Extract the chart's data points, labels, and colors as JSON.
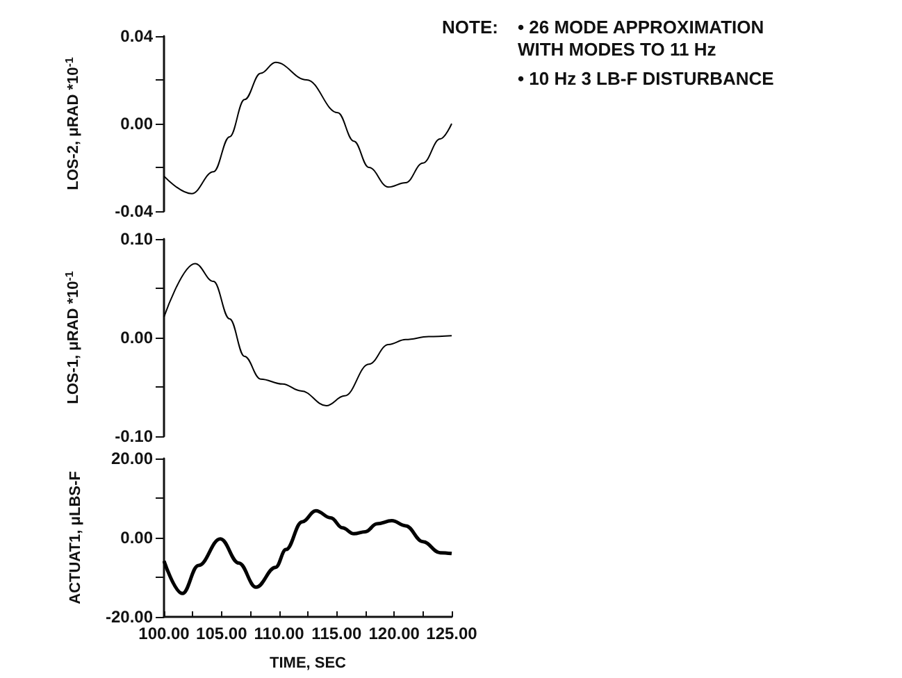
{
  "chart_data": [
    {
      "type": "line",
      "ylabel": "LOS-2, μRAD *10$^{-1}$",
      "annotations": [
        "NOTE:",
        "• 26 MODE APPROXIMATION WITH MODES TO 11 Hz",
        "• 10 Hz 3 LB-F DISTURBANCE"
      ],
      "xlim": [
        100,
        125
      ],
      "ylim": [
        -0.04,
        0.04
      ],
      "yticks": [
        {
          "value": -0.04,
          "label": "-0.04"
        },
        {
          "value": -0.02,
          "label": null
        },
        {
          "value": 0,
          "label": "0.00"
        },
        {
          "value": 0.02,
          "label": null
        },
        {
          "value": 0.04,
          "label": "0.04"
        }
      ],
      "tick_labels": "y",
      "marker": "none",
      "series": [
        {
          "color": "#000000",
          "x": [
            100,
            102.4,
            104.3,
            105.7,
            107,
            108.4,
            109.7,
            112.4,
            115.1,
            116.5,
            117.8,
            119.5,
            121,
            122.5,
            124,
            125
          ],
          "values": [
            -0.024,
            -0.032,
            -0.022,
            -0.006,
            0.011,
            0.023,
            0.028,
            0.02,
            0.005,
            -0.008,
            -0.02,
            -0.029,
            -0.027,
            -0.018,
            -0.007,
            0
          ]
        }
      ]
    },
    {
      "type": "line",
      "ylabel": "LOS-1, μRAD *10$^{-1}$",
      "xlim": [
        100,
        125
      ],
      "ylim": [
        -0.1,
        0.1
      ],
      "yticks": [
        {
          "value": -0.1,
          "label": "-0.10"
        },
        {
          "value": -0.05,
          "label": null
        },
        {
          "value": 0,
          "label": "0.00"
        },
        {
          "value": 0.05,
          "label": null
        },
        {
          "value": 0.1,
          "label": "0.10"
        }
      ],
      "tick_labels": "y",
      "marker": "none",
      "series": [
        {
          "color": "#000000",
          "x": [
            100,
            102.7,
            104.3,
            105.7,
            107,
            108.4,
            110.3,
            111.9,
            114.1,
            115.7,
            117.8,
            119.5,
            121,
            123,
            125
          ],
          "values": [
            0.021,
            0.075,
            0.057,
            0.019,
            -0.019,
            -0.042,
            -0.047,
            -0.054,
            -0.069,
            -0.059,
            -0.027,
            -0.007,
            -0.002,
            0.001,
            0.002
          ]
        }
      ]
    },
    {
      "type": "line",
      "ylabel": "ACTUAT1, μLBS-F",
      "xlabel": "TIME, SEC",
      "xlim": [
        100,
        125
      ],
      "xticks": [
        {
          "value": 100,
          "label": "100.00"
        },
        {
          "value": 102.5,
          "label": null
        },
        {
          "value": 105,
          "label": "105.00"
        },
        {
          "value": 107.5,
          "label": null
        },
        {
          "value": 110,
          "label": "110.00"
        },
        {
          "value": 112.5,
          "label": null
        },
        {
          "value": 115,
          "label": "115.00"
        },
        {
          "value": 117.5,
          "label": null
        },
        {
          "value": 120,
          "label": "120.00"
        },
        {
          "value": 122.5,
          "label": null
        },
        {
          "value": 125,
          "label": "125.00"
        }
      ],
      "ylim": [
        -20,
        20
      ],
      "yticks": [
        {
          "value": -20,
          "label": "-20.00"
        },
        {
          "value": -10,
          "label": null
        },
        {
          "value": 0,
          "label": "0.00"
        },
        {
          "value": 10,
          "label": null
        },
        {
          "value": 20,
          "label": "20.00"
        }
      ],
      "marker": "none",
      "series": [
        {
          "color": "#000000",
          "x": [
            100,
            101.6,
            103,
            104.9,
            106.5,
            108,
            109.7,
            110.6,
            112,
            113.2,
            114.5,
            115.5,
            116.5,
            117.5,
            118.5,
            119.8,
            121,
            122.5,
            124,
            125
          ],
          "values": [
            -5.9,
            -14.1,
            -7,
            -0.3,
            -6.4,
            -12.5,
            -7.5,
            -3,
            4,
            6.8,
            5,
            2.5,
            1,
            1.5,
            3.5,
            4.3,
            3,
            -1,
            -3.8,
            -4
          ]
        }
      ]
    }
  ]
}
